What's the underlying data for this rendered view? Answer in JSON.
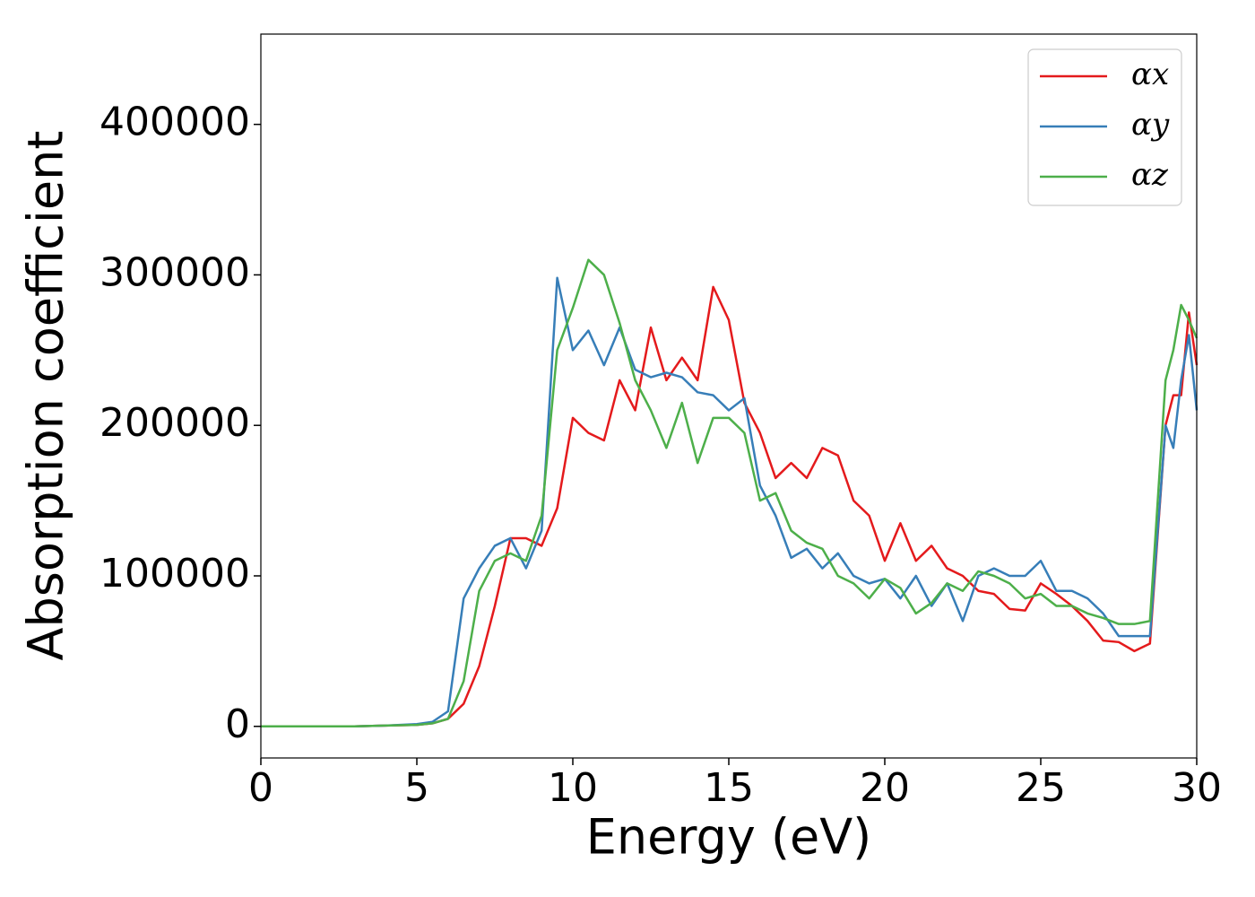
{
  "chart_data": {
    "type": "line",
    "xlabel": "Energy (eV)",
    "ylabel": "Absorption coefficient",
    "x": [
      0,
      1,
      2,
      3,
      4,
      5,
      5.5,
      6,
      6.5,
      7,
      7.5,
      8,
      8.5,
      9,
      9.5,
      10,
      10.5,
      11,
      11.5,
      12,
      12.5,
      13,
      13.5,
      14,
      14.5,
      15,
      15.5,
      16,
      16.5,
      17,
      17.5,
      18,
      18.5,
      19,
      19.5,
      20,
      20.5,
      21,
      21.5,
      22,
      22.5,
      23,
      23.5,
      24,
      24.5,
      25,
      25.5,
      26,
      26.5,
      27,
      27.5,
      28,
      28.5,
      29,
      29.25,
      29.5,
      29.75,
      30
    ],
    "series": [
      {
        "name": "αx",
        "color": "#e41a1c",
        "values": [
          0,
          0,
          0,
          0,
          500,
          1000,
          2000,
          5000,
          15000,
          40000,
          80000,
          125000,
          125000,
          120000,
          145000,
          205000,
          195000,
          190000,
          230000,
          210000,
          265000,
          230000,
          245000,
          230000,
          292000,
          270000,
          215000,
          195000,
          165000,
          175000,
          165000,
          185000,
          180000,
          150000,
          140000,
          110000,
          135000,
          110000,
          120000,
          105000,
          100000,
          90000,
          88000,
          78000,
          77000,
          95000,
          88000,
          80000,
          70000,
          57000,
          56000,
          50000,
          55000,
          200000,
          220000,
          220000,
          275000,
          240000
        ]
      },
      {
        "name": "αy",
        "color": "#377eb8",
        "values": [
          0,
          0,
          0,
          0,
          500,
          1500,
          3000,
          10000,
          85000,
          105000,
          120000,
          125000,
          105000,
          130000,
          298000,
          250000,
          263000,
          240000,
          265000,
          237000,
          232000,
          235000,
          232000,
          222000,
          220000,
          210000,
          218000,
          160000,
          140000,
          112000,
          118000,
          105000,
          115000,
          100000,
          95000,
          98000,
          85000,
          100000,
          80000,
          95000,
          70000,
          100000,
          105000,
          100000,
          100000,
          110000,
          90000,
          90000,
          85000,
          75000,
          60000,
          60000,
          60000,
          200000,
          185000,
          230000,
          260000,
          210000
        ]
      },
      {
        "name": "αz",
        "color": "#4daf4a",
        "values": [
          0,
          0,
          0,
          0,
          500,
          1000,
          2000,
          5000,
          30000,
          90000,
          110000,
          115000,
          110000,
          140000,
          250000,
          278000,
          310000,
          300000,
          268000,
          230000,
          210000,
          185000,
          215000,
          175000,
          205000,
          205000,
          195000,
          150000,
          155000,
          130000,
          122000,
          118000,
          100000,
          95000,
          85000,
          98000,
          92000,
          75000,
          82000,
          95000,
          90000,
          103000,
          100000,
          95000,
          85000,
          88000,
          80000,
          80000,
          75000,
          72000,
          68000,
          68000,
          70000,
          230000,
          250000,
          280000,
          270000,
          258000
        ]
      }
    ],
    "xlim": [
      0,
      30
    ],
    "xticks": [
      0,
      5,
      10,
      15,
      20,
      25,
      30
    ],
    "ylim": [
      -21000,
      460000
    ],
    "yticks": [
      0,
      100000,
      200000,
      300000,
      400000
    ],
    "grid": false,
    "legend": "upper right"
  }
}
